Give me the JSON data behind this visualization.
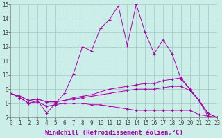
{
  "background_color": "#cceee8",
  "grid_color": "#aacccc",
  "line_color": "#aa00aa",
  "x_min": 0,
  "x_max": 23,
  "y_min": 7,
  "y_max": 15,
  "xlabel": "Windchill (Refroidissement éolien,°C)",
  "xlabel_fontsize": 6.5,
  "tick_fontsize": 5.5,
  "series": [
    {
      "x": [
        0,
        1,
        2,
        3,
        4,
        5,
        6,
        7,
        8,
        9,
        10,
        11,
        12,
        13,
        14,
        15,
        16,
        17,
        18,
        19,
        20,
        21,
        22,
        23
      ],
      "y": [
        8.7,
        8.4,
        8.0,
        8.2,
        7.3,
        8.0,
        8.7,
        10.1,
        12.0,
        11.7,
        13.3,
        13.9,
        14.9,
        12.1,
        15.0,
        13.0,
        11.5,
        12.5,
        11.5,
        9.7,
        9.0,
        8.2,
        7.1,
        7.0
      ]
    },
    {
      "x": [
        0,
        1,
        2,
        3,
        4,
        5,
        6,
        7,
        8,
        9,
        10,
        11,
        12,
        13,
        14,
        15,
        16,
        17,
        18,
        19,
        20,
        21,
        22,
        23
      ],
      "y": [
        8.7,
        8.5,
        8.2,
        8.3,
        8.1,
        8.1,
        8.2,
        8.4,
        8.5,
        8.6,
        8.8,
        9.0,
        9.1,
        9.2,
        9.3,
        9.4,
        9.4,
        9.6,
        9.7,
        9.8,
        9.0,
        8.2,
        7.3,
        7.0
      ]
    },
    {
      "x": [
        0,
        1,
        2,
        3,
        4,
        5,
        6,
        7,
        8,
        9,
        10,
        11,
        12,
        13,
        14,
        15,
        16,
        17,
        18,
        19,
        20,
        21,
        22,
        23
      ],
      "y": [
        8.7,
        8.5,
        8.2,
        8.3,
        8.1,
        8.1,
        8.2,
        8.3,
        8.4,
        8.5,
        8.6,
        8.7,
        8.8,
        8.9,
        9.0,
        9.0,
        9.0,
        9.1,
        9.2,
        9.2,
        8.9,
        8.2,
        7.3,
        7.0
      ]
    },
    {
      "x": [
        0,
        1,
        2,
        3,
        4,
        5,
        6,
        7,
        8,
        9,
        10,
        11,
        12,
        13,
        14,
        15,
        16,
        17,
        18,
        19,
        20,
        21,
        22,
        23
      ],
      "y": [
        8.7,
        8.4,
        8.0,
        8.1,
        7.8,
        7.9,
        8.0,
        8.0,
        8.0,
        7.9,
        7.9,
        7.8,
        7.7,
        7.6,
        7.5,
        7.5,
        7.5,
        7.5,
        7.5,
        7.5,
        7.5,
        7.2,
        7.1,
        7.0
      ]
    }
  ]
}
